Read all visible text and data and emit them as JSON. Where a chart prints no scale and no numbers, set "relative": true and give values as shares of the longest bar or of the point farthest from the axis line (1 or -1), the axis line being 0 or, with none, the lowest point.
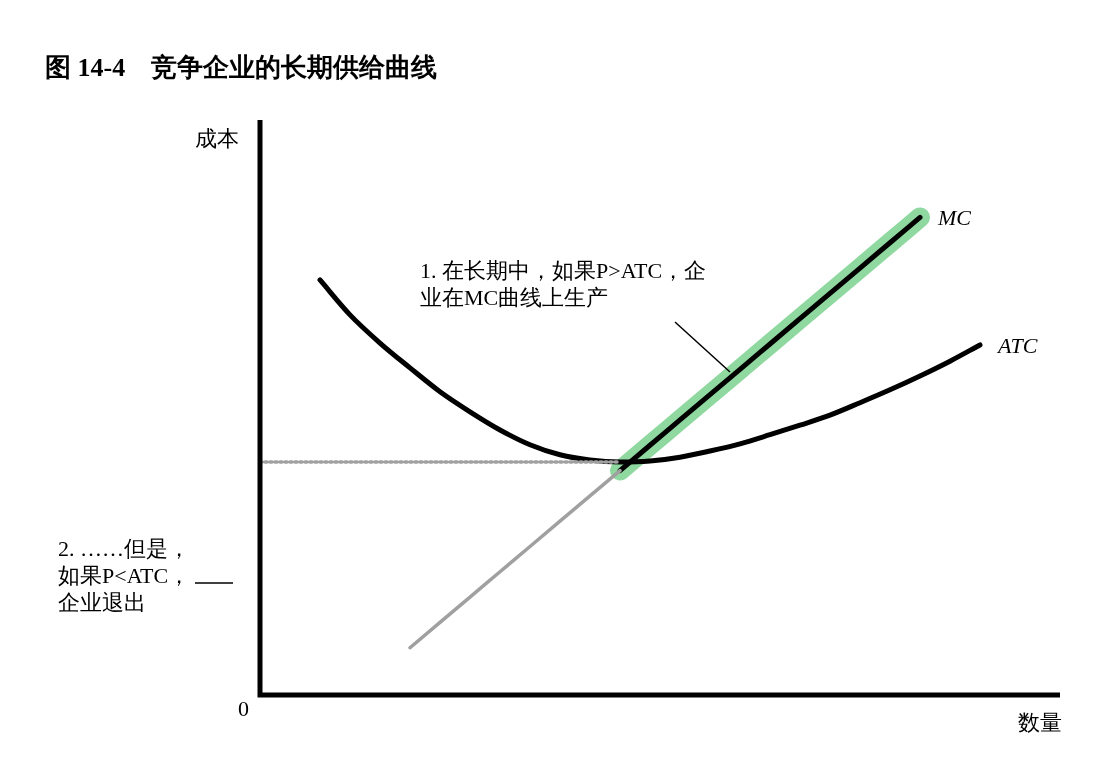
{
  "chart_data": {
    "type": "line",
    "relative": true,
    "title": "图 14-4　竞争企业的长期供给曲线",
    "ylabel": "成本",
    "xlabel": "数量",
    "categories": [
      null,
      null,
      null,
      null,
      null,
      null,
      null,
      null,
      null,
      null,
      null,
      null,
      null,
      null,
      null,
      null,
      null,
      null,
      null,
      null,
      null,
      null,
      null,
      null,
      null,
      null,
      null
    ],
    "series": [
      {
        "color": "#8fd9a0",
        "values": [
          null,
          null,
          null,
          null,
          null,
          null,
          null,
          null,
          null,
          null,
          null,
          null,
          0.47,
          0.523,
          0.576,
          0.629,
          0.682,
          0.735,
          0.788,
          0.841,
          0.894,
          0.947,
          1,
          null,
          null,
          null,
          null
        ]
      },
      {
        "name": "ATC",
        "color": "#000000",
        "values": [
          null,
          null,
          0.869,
          0.796,
          0.737,
          0.685,
          0.635,
          0.593,
          0.555,
          0.524,
          0.503,
          0.492,
          0.488,
          0.49,
          0.498,
          0.511,
          0.526,
          0.545,
          0.565,
          0.586,
          0.612,
          0.639,
          0.668,
          0.699,
          0.733,
          null,
          null
        ]
      },
      {
        "name": "MC",
        "color": "#000000",
        "values": [
          null,
          null,
          null,
          null,
          null,
          null,
          null,
          null,
          null,
          null,
          null,
          null,
          0.47,
          0.523,
          0.576,
          0.629,
          0.682,
          0.735,
          0.788,
          0.841,
          0.894,
          0.947,
          1,
          null,
          null,
          null,
          null
        ]
      },
      {
        "color": "#a0a0a0",
        "values": [
          null,
          null,
          null,
          null,
          null,
          0.099,
          0.152,
          0.205,
          0.258,
          0.311,
          0.364,
          0.417,
          0.47,
          null,
          null,
          null,
          null,
          null,
          null,
          null,
          null,
          null,
          null,
          null,
          null,
          null,
          null
        ]
      },
      {
        "color": "#a0a0a0",
        "line_style": "dotted",
        "values": [
          0.488,
          0.488,
          0.488,
          0.488,
          0.488,
          0.488,
          0.488,
          0.488,
          0.488,
          0.488,
          0.488,
          0.488,
          0.488,
          null,
          null,
          null,
          null,
          null,
          null,
          null,
          null,
          null,
          null,
          null,
          null,
          null,
          null
        ]
      }
    ],
    "annotations": [
      "1. 在长期中，如果P>ATC，企业在MC曲线上生产",
      "2. ……但是，如果P<ATC，企业退出",
      "0"
    ],
    "legend": false,
    "grid": false
  }
}
